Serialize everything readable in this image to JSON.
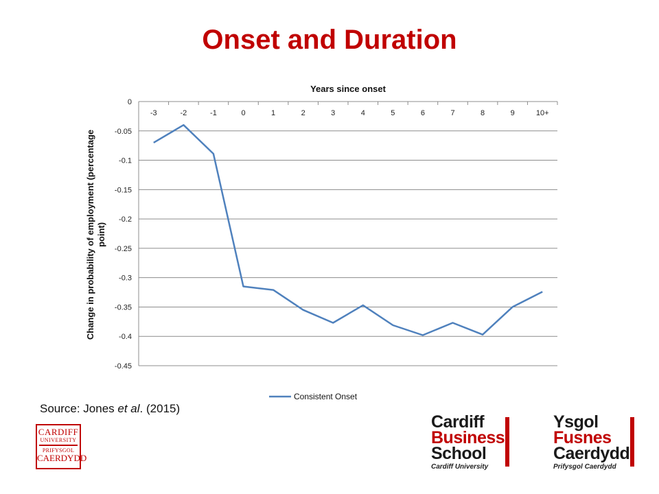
{
  "slide": {
    "title": "Onset and Duration",
    "source_prefix": "Source: Jones ",
    "source_italic": "et al",
    "source_suffix": ". (2015)"
  },
  "logos": {
    "cardiff_university": [
      "CARDIFF",
      "UNIVERSITY",
      "PRIFYSGOL",
      "CAERDYDD"
    ],
    "business_school_en": {
      "line1": "Cardiff",
      "line2": "Business",
      "line3": "School",
      "sub": "Cardiff University"
    },
    "business_school_cy": {
      "line1": "Ysgol",
      "line2": "Fusnes",
      "line3": "Caerdydd",
      "sub": "Prifysgol Caerdydd"
    }
  },
  "chart_data": {
    "type": "line",
    "title": "",
    "xlabel": "Years since onset",
    "ylabel": "Change in probability of employment (percentage point)",
    "categories": [
      "-3",
      "-2",
      "-1",
      "0",
      "1",
      "2",
      "3",
      "4",
      "5",
      "6",
      "7",
      "8",
      "9",
      "10+"
    ],
    "series": [
      {
        "name": "Consistent Onset",
        "color": "#4f81bd",
        "values": [
          -0.07,
          -0.04,
          -0.089,
          -0.315,
          -0.321,
          -0.355,
          -0.377,
          -0.347,
          -0.381,
          -0.398,
          -0.377,
          -0.397,
          -0.35,
          -0.324
        ]
      }
    ],
    "yticks": [
      0,
      -0.05,
      -0.1,
      -0.15,
      -0.2,
      -0.25,
      -0.3,
      -0.35,
      -0.4,
      -0.45
    ],
    "ylim": [
      -0.45,
      0
    ],
    "x_axis_position": "top",
    "grid": true,
    "legend_position": "bottom"
  }
}
